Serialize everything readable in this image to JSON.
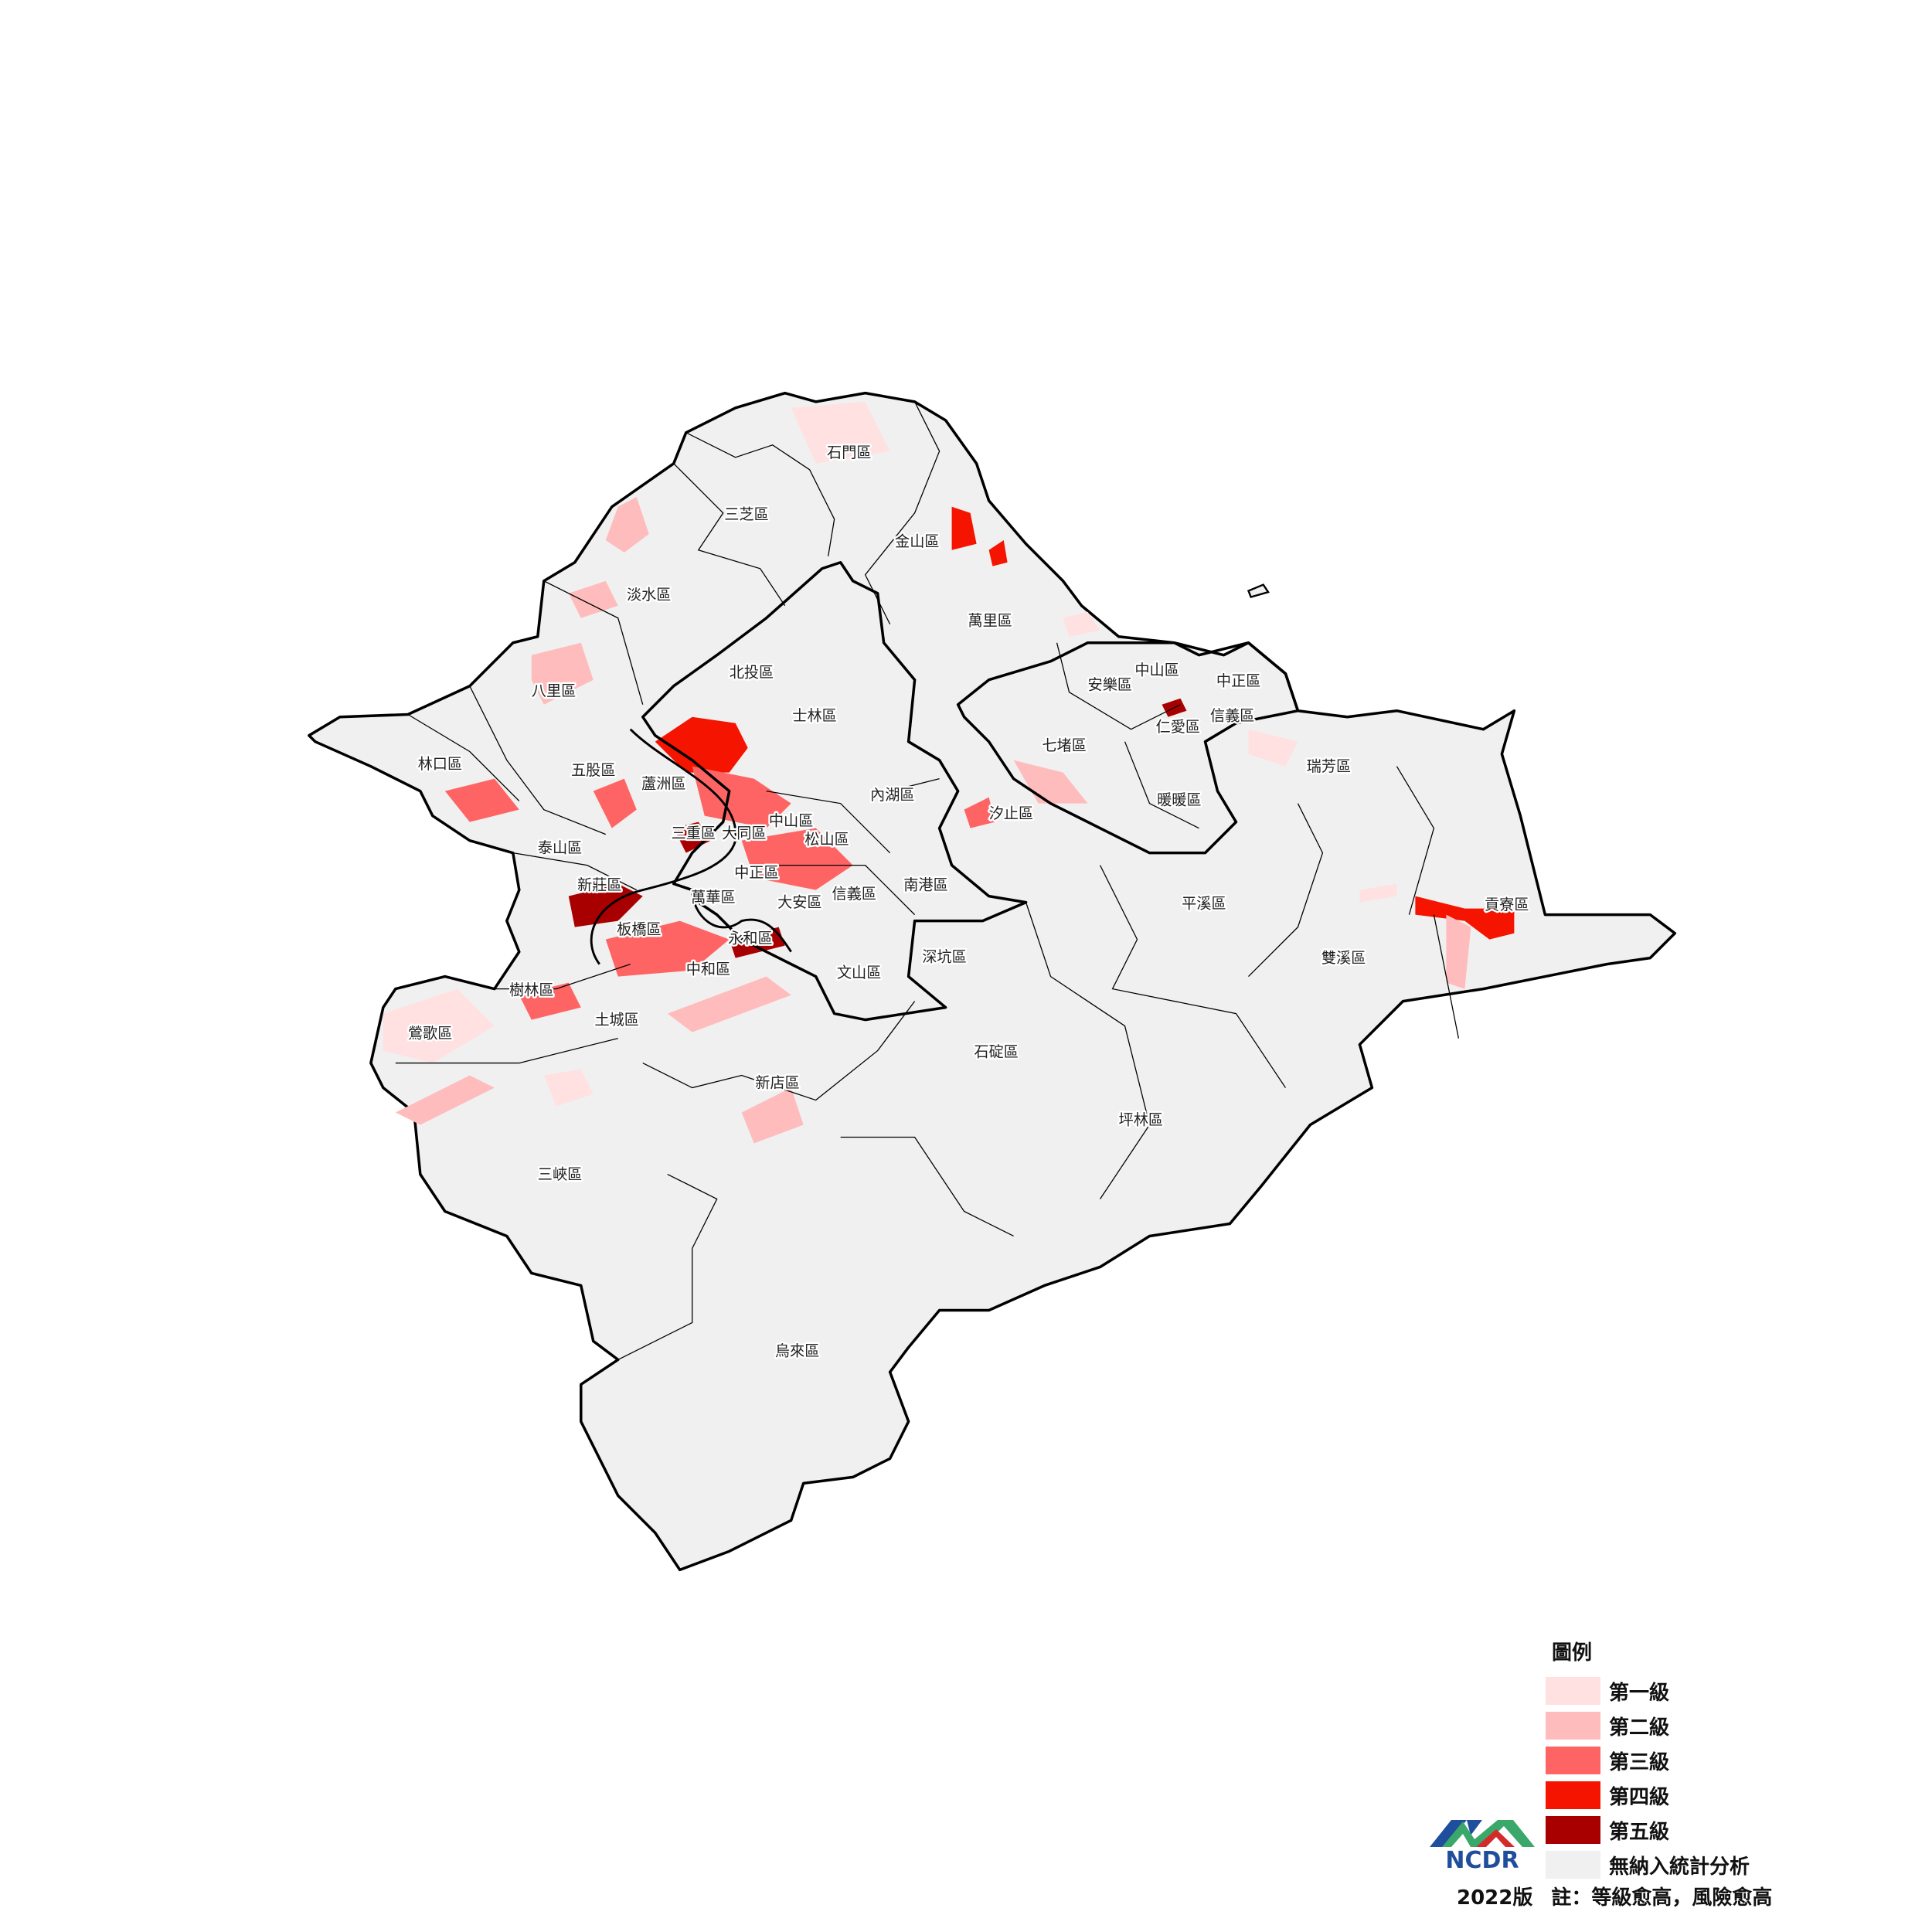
{
  "districts": [
    "石門區",
    "三芝區",
    "金山區",
    "淡水區",
    "萬里區",
    "北投區",
    "士林區",
    "八里區",
    "中山區",
    "中正區",
    "安樂區",
    "信義區",
    "仁愛區",
    "七堵區",
    "林口區",
    "五股區",
    "蘆洲區",
    "內湖區",
    "瑞芳區",
    "暖暖區",
    "汐止區",
    "中山區",
    "三重區",
    "大同區",
    "松山區",
    "泰山區",
    "中正區",
    "新莊區",
    "萬華區",
    "大安區",
    "信義區",
    "南港區",
    "平溪區",
    "貢寮區",
    "板橋區",
    "永和區",
    "深坑區",
    "雙溪區",
    "中和區",
    "文山區",
    "樹林區",
    "土城區",
    "鶯歌區",
    "石碇區",
    "新店區",
    "坪林區",
    "三峽區",
    "烏來區"
  ],
  "legend": {
    "title": "圖例",
    "items": [
      {
        "label": "第一級",
        "color": "#ffe1e1"
      },
      {
        "label": "第二級",
        "color": "#ffbcbc"
      },
      {
        "label": "第三級",
        "color": "#ff6464"
      },
      {
        "label": "第四級",
        "color": "#f51400"
      },
      {
        "label": "第五級",
        "color": "#a80000"
      },
      {
        "label": "無納入統計分析",
        "color": "#f0f0f0"
      }
    ]
  },
  "footer": {
    "version": "2022版",
    "note": "註：等級愈高，風險愈高"
  },
  "logo": {
    "text": "NCDR",
    "colors": {
      "blue": "#1f4e9c",
      "green": "#3aa86b",
      "red": "#d42a2a"
    }
  }
}
